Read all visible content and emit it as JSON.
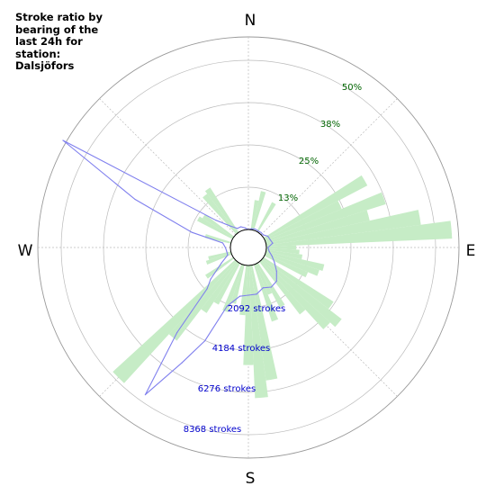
{
  "title_lines": [
    "Stroke ratio by",
    "bearing of the",
    "last 24h for",
    "station:",
    "Dalsjöfors"
  ],
  "chart_data": {
    "type": "polar",
    "directions": [
      "N",
      "E",
      "S",
      "W"
    ],
    "ratio_ticks": [
      "13%",
      "25%",
      "38%",
      "50%"
    ],
    "ratio_tick_values": [
      12.5,
      25,
      37.5,
      50
    ],
    "ratio_max": 56,
    "count_ticks": [
      "2092 strokes",
      "4184 strokes",
      "6276 strokes",
      "8368 strokes"
    ],
    "count_tick_values": [
      2092,
      4184,
      6276,
      8368
    ],
    "grid": true,
    "colors": {
      "ratio_bars": "#c6ecc6",
      "count_line": "#8080ee",
      "grid": "#bbbbbb"
    },
    "ratio_bars": [
      {
        "bearing": 10,
        "value": 9
      },
      {
        "bearing": 15,
        "value": 12
      },
      {
        "bearing": 30,
        "value": 10
      },
      {
        "bearing": 60,
        "value": 35
      },
      {
        "bearing": 65,
        "value": 25
      },
      {
        "bearing": 70,
        "value": 38
      },
      {
        "bearing": 75,
        "value": 32
      },
      {
        "bearing": 80,
        "value": 47
      },
      {
        "bearing": 85,
        "value": 56
      },
      {
        "bearing": 90,
        "value": 9
      },
      {
        "bearing": 95,
        "value": 10
      },
      {
        "bearing": 100,
        "value": 11
      },
      {
        "bearing": 105,
        "value": 18
      },
      {
        "bearing": 110,
        "value": 17
      },
      {
        "bearing": 115,
        "value": 14
      },
      {
        "bearing": 125,
        "value": 25
      },
      {
        "bearing": 130,
        "value": 30
      },
      {
        "bearing": 135,
        "value": 28
      },
      {
        "bearing": 140,
        "value": 20
      },
      {
        "bearing": 150,
        "value": 15
      },
      {
        "bearing": 155,
        "value": 10
      },
      {
        "bearing": 160,
        "value": 18
      },
      {
        "bearing": 170,
        "value": 35
      },
      {
        "bearing": 175,
        "value": 40
      },
      {
        "bearing": 180,
        "value": 30
      },
      {
        "bearing": 185,
        "value": 15
      },
      {
        "bearing": 195,
        "value": 12
      },
      {
        "bearing": 200,
        "value": 15
      },
      {
        "bearing": 210,
        "value": 14
      },
      {
        "bearing": 215,
        "value": 18
      },
      {
        "bearing": 220,
        "value": 30
      },
      {
        "bearing": 225,
        "value": 50
      },
      {
        "bearing": 235,
        "value": 10
      },
      {
        "bearing": 250,
        "value": 8
      },
      {
        "bearing": 255,
        "value": 7
      },
      {
        "bearing": 285,
        "value": 8
      },
      {
        "bearing": 300,
        "value": 12
      },
      {
        "bearing": 305,
        "value": 11
      },
      {
        "bearing": 320,
        "value": 15
      },
      {
        "bearing": 325,
        "value": 16
      }
    ],
    "stroke_counts": [
      {
        "bearing": 0,
        "value": 0
      },
      {
        "bearing": 10,
        "value": 50
      },
      {
        "bearing": 20,
        "value": 80
      },
      {
        "bearing": 30,
        "value": 60
      },
      {
        "bearing": 40,
        "value": 80
      },
      {
        "bearing": 50,
        "value": 80
      },
      {
        "bearing": 60,
        "value": 220
      },
      {
        "bearing": 70,
        "value": 250
      },
      {
        "bearing": 80,
        "value": 330
      },
      {
        "bearing": 90,
        "value": 80
      },
      {
        "bearing": 100,
        "value": 150
      },
      {
        "bearing": 110,
        "value": 350
      },
      {
        "bearing": 120,
        "value": 600
      },
      {
        "bearing": 130,
        "value": 930
      },
      {
        "bearing": 140,
        "value": 1280
      },
      {
        "bearing": 150,
        "value": 1370
      },
      {
        "bearing": 160,
        "value": 1230
      },
      {
        "bearing": 170,
        "value": 1450
      },
      {
        "bearing": 180,
        "value": 1470
      },
      {
        "bearing": 190,
        "value": 1560
      },
      {
        "bearing": 200,
        "value": 2200
      },
      {
        "bearing": 205,
        "value": 4200
      },
      {
        "bearing": 210,
        "value": 5700
      },
      {
        "bearing": 215,
        "value": 8000
      },
      {
        "bearing": 220,
        "value": 4600
      },
      {
        "bearing": 225,
        "value": 2000
      },
      {
        "bearing": 230,
        "value": 1550
      },
      {
        "bearing": 240,
        "value": 650
      },
      {
        "bearing": 250,
        "value": 200
      },
      {
        "bearing": 260,
        "value": 200
      },
      {
        "bearing": 270,
        "value": 250
      },
      {
        "bearing": 280,
        "value": 400
      },
      {
        "bearing": 285,
        "value": 2000
      },
      {
        "bearing": 293,
        "value": 5200
      },
      {
        "bearing": 300,
        "value": 9700
      },
      {
        "bearing": 310,
        "value": 1200
      },
      {
        "bearing": 320,
        "value": 500
      },
      {
        "bearing": 330,
        "value": 200
      },
      {
        "bearing": 340,
        "value": 200
      },
      {
        "bearing": 350,
        "value": 100
      }
    ]
  }
}
